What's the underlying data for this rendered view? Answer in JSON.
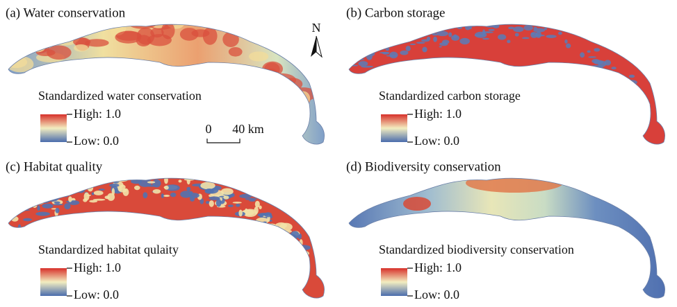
{
  "panels": [
    {
      "title": "(a) Water conservation",
      "legend": {
        "title": "Standardized water conservation",
        "high": "High: 1.0",
        "low": "Low: 0.0"
      }
    },
    {
      "title": "(b) Carbon storage",
      "legend": {
        "title": "Standardized carbon storage",
        "high": "High: 1.0",
        "low": "Low: 0.0"
      }
    },
    {
      "title": "(c) Habitat quality",
      "legend": {
        "title": "Standardized habitat qulaity",
        "high": "High: 1.0",
        "low": "Low: 0.0"
      }
    },
    {
      "title": "(d) Biodiversity conservation",
      "legend": {
        "title": "Standardized biodiversity conservation",
        "high": "High: 1.0",
        "low": "Low: 0.0"
      }
    }
  ],
  "scale_bar": {
    "start": "0",
    "end": "40 km"
  },
  "north_arrow": "N"
}
